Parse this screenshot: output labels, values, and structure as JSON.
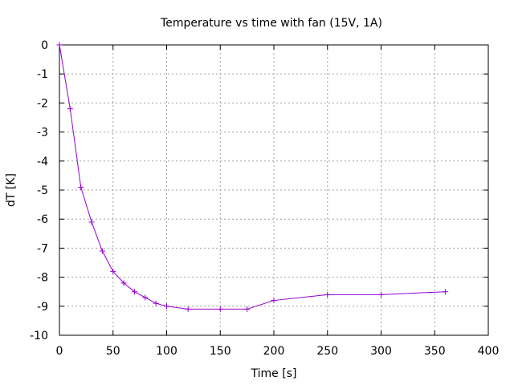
{
  "chart_data": {
    "type": "line",
    "title": "Temperature vs time with fan (15V, 1A)",
    "xlabel": "Time [s]",
    "ylabel": "dT [K]",
    "xlim": [
      0,
      400
    ],
    "ylim": [
      -10,
      0
    ],
    "xticks": [
      0,
      50,
      100,
      150,
      200,
      250,
      300,
      350,
      400
    ],
    "yticks": [
      0,
      -1,
      -2,
      -3,
      -4,
      -5,
      -6,
      -7,
      -8,
      -9,
      -10
    ],
    "grid": true,
    "legend": "none",
    "series": [
      {
        "color": "#9400d3",
        "marker": "plus",
        "x": [
          0,
          10,
          20,
          30,
          40,
          50,
          60,
          70,
          80,
          90,
          100,
          120,
          150,
          175,
          200,
          250,
          300,
          360
        ],
        "y": [
          0,
          -2.2,
          -4.9,
          -6.1,
          -7.1,
          -7.8,
          -8.2,
          -8.5,
          -8.7,
          -8.9,
          -9.0,
          -9.1,
          -9.1,
          -9.1,
          -8.8,
          -8.6,
          -8.6,
          -8.5
        ]
      }
    ]
  }
}
